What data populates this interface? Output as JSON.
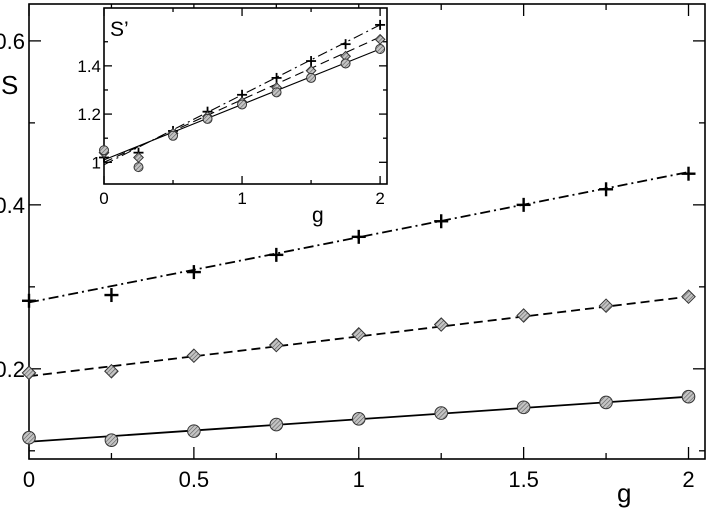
{
  "chart_data": [
    {
      "type": "scatter",
      "title": "",
      "xlabel": "g",
      "ylabel": "S",
      "xlim": [
        0,
        2.05
      ],
      "ylim": [
        0.09,
        0.645
      ],
      "xticks": [
        0,
        0.5,
        1,
        1.5,
        2
      ],
      "xtick_labels": [
        "0",
        "0.5",
        "1",
        "1.5",
        "2"
      ],
      "yticks": [
        0.2,
        0.4,
        0.6
      ],
      "ytick_labels": [
        "0.2",
        "0.4",
        "0.6"
      ],
      "grid": false,
      "series": [
        {
          "marker": "plus",
          "line_style": "dash-dot",
          "x": [
            0,
            0.25,
            0.5,
            0.75,
            1.0,
            1.25,
            1.5,
            1.75,
            2.0
          ],
          "y": [
            0.283,
            0.29,
            0.318,
            0.339,
            0.361,
            0.38,
            0.4,
            0.419,
            0.438
          ],
          "fit": [
            0.281,
            0.44
          ]
        },
        {
          "marker": "diamond",
          "line_style": "dashed",
          "x": [
            0,
            0.25,
            0.5,
            0.75,
            1.0,
            1.25,
            1.5,
            1.75,
            2.0
          ],
          "y": [
            0.195,
            0.197,
            0.216,
            0.229,
            0.242,
            0.254,
            0.265,
            0.277,
            0.288
          ],
          "fit": [
            0.191,
            0.288
          ]
        },
        {
          "marker": "circle",
          "line_style": "solid",
          "x": [
            0,
            0.25,
            0.5,
            0.75,
            1.0,
            1.25,
            1.5,
            1.75,
            2.0
          ],
          "y": [
            0.116,
            0.113,
            0.124,
            0.132,
            0.139,
            0.146,
            0.153,
            0.159,
            0.166
          ],
          "fit": [
            0.111,
            0.166
          ]
        }
      ]
    },
    {
      "type": "scatter",
      "title": "",
      "xlabel": "g",
      "ylabel": "S’",
      "xlim": [
        0,
        2.05
      ],
      "ylim": [
        0.91,
        1.64
      ],
      "xticks": [
        0,
        1,
        2
      ],
      "xtick_labels": [
        "0",
        "1",
        "2"
      ],
      "yticks": [
        1.0,
        1.2,
        1.4
      ],
      "ytick_labels": [
        "1",
        "1.2",
        "1.4"
      ],
      "grid": false,
      "series": [
        {
          "marker": "plus",
          "line_style": "dash-dot",
          "x": [
            0,
            0.25,
            0.5,
            0.75,
            1.0,
            1.25,
            1.5,
            1.75,
            2.0
          ],
          "y": [
            1.02,
            1.04,
            1.13,
            1.21,
            1.28,
            1.35,
            1.42,
            1.49,
            1.57
          ],
          "fit": [
            0.99,
            1.57
          ]
        },
        {
          "marker": "diamond",
          "line_style": "dashed",
          "x": [
            0,
            0.25,
            0.5,
            0.75,
            1.0,
            1.25,
            1.5,
            1.75,
            2.0
          ],
          "y": [
            1.04,
            1.02,
            1.12,
            1.19,
            1.25,
            1.31,
            1.38,
            1.44,
            1.51
          ],
          "fit": [
            1.0,
            1.52
          ]
        },
        {
          "marker": "circle",
          "line_style": "solid",
          "x": [
            0,
            0.25,
            0.5,
            0.75,
            1.0,
            1.25,
            1.5,
            1.75,
            2.0
          ],
          "y": [
            1.05,
            0.98,
            1.11,
            1.18,
            1.24,
            1.29,
            1.35,
            1.41,
            1.47
          ],
          "fit": [
            1.01,
            1.47
          ]
        }
      ]
    }
  ]
}
